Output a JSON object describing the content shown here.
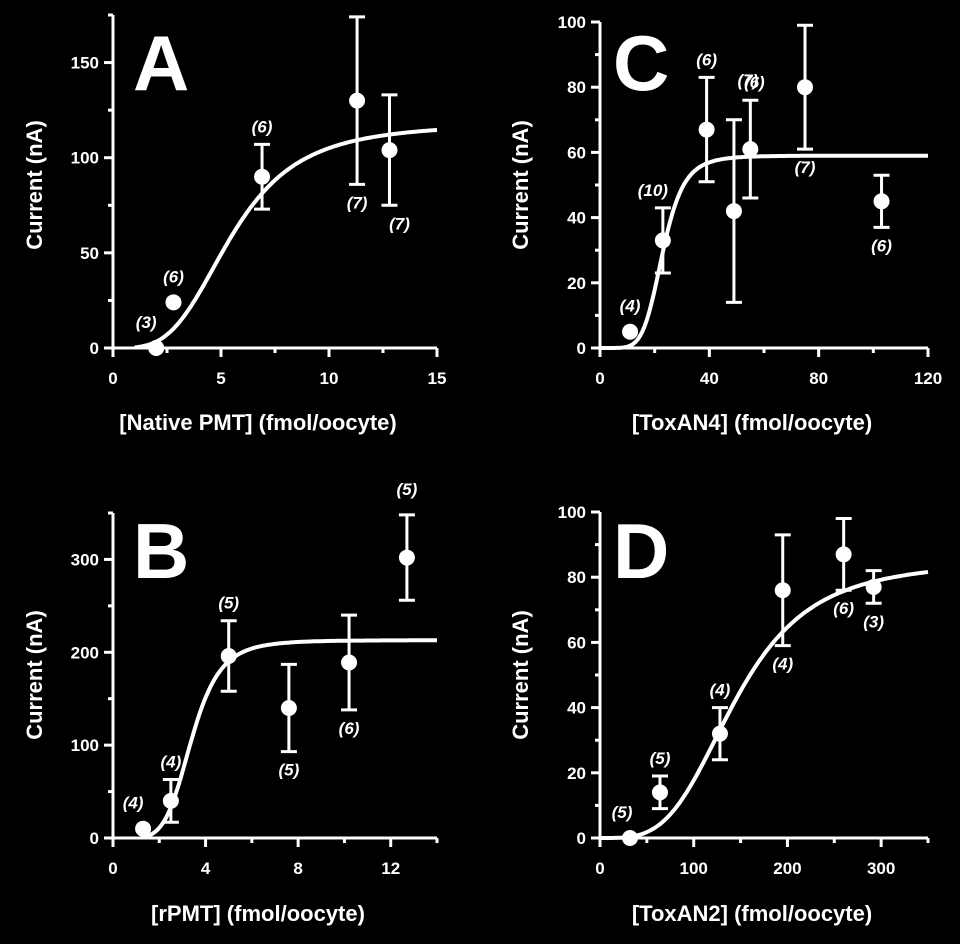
{
  "chart_data": [
    {
      "type": "scatter",
      "panel": "A",
      "xlabel": "[Native PMT] (fmol/oocyte)",
      "ylabel": "Current  (nA)",
      "xlim": [
        0,
        15
      ],
      "ylim": [
        0,
        175
      ],
      "xticks": [
        0,
        5,
        10,
        15
      ],
      "yticks": [
        0,
        50,
        100,
        150
      ],
      "points": [
        {
          "x": 2.0,
          "y": 0,
          "err": 0,
          "n": "(3)"
        },
        {
          "x": 2.8,
          "y": 24,
          "err": 0,
          "n": "(6)"
        },
        {
          "x": 6.9,
          "y": 90,
          "err": 17,
          "n": "(6)"
        },
        {
          "x": 11.3,
          "y": 130,
          "err": 44,
          "n": "(7)"
        },
        {
          "x": 12.8,
          "y": 104,
          "err": 29,
          "n": "(7)"
        }
      ],
      "fit": {
        "max": 118,
        "ec50": 5.5,
        "hill": 3.5,
        "xrange": [
          1,
          15
        ]
      }
    },
    {
      "type": "scatter",
      "panel": "B",
      "xlabel": "[rPMT] (fmol/oocyte)",
      "ylabel": "Current  (nA)",
      "xlim": [
        0,
        14
      ],
      "ylim": [
        0,
        350
      ],
      "xticks": [
        0,
        4,
        8,
        12
      ],
      "yticks": [
        0,
        100,
        200,
        300
      ],
      "points": [
        {
          "x": 1.3,
          "y": 10,
          "err": 0,
          "n": "(4)"
        },
        {
          "x": 2.5,
          "y": 40,
          "err": 23,
          "n": "(4)"
        },
        {
          "x": 5.0,
          "y": 196,
          "err": 38,
          "n": "(5)"
        },
        {
          "x": 7.6,
          "y": 140,
          "err": 47,
          "n": "(5)"
        },
        {
          "x": 10.2,
          "y": 189,
          "err": 51,
          "n": "(6)"
        },
        {
          "x": 12.7,
          "y": 302,
          "err": 46,
          "n": "(5)"
        }
      ],
      "fit": {
        "max": 213,
        "ec50": 3.4,
        "hill": 5.5,
        "xrange": [
          1.2,
          14
        ]
      }
    },
    {
      "type": "scatter",
      "panel": "C",
      "xlabel": "[ToxAN4] (fmol/oocyte)",
      "ylabel": "Current  (nA)",
      "xlim": [
        0,
        120
      ],
      "ylim": [
        0,
        100
      ],
      "xticks": [
        0,
        40,
        80,
        120
      ],
      "yticks": [
        0,
        20,
        40,
        60,
        80,
        100
      ],
      "points": [
        {
          "x": 11,
          "y": 5,
          "err": 0,
          "n": "(4)"
        },
        {
          "x": 23,
          "y": 33,
          "err": 10,
          "n": "(10)"
        },
        {
          "x": 39,
          "y": 67,
          "err": 16,
          "n": "(6)"
        },
        {
          "x": 49,
          "y": 42,
          "err": 28,
          "n": "(7)"
        },
        {
          "x": 55,
          "y": 61,
          "err": 15,
          "n": "(6)"
        },
        {
          "x": 75,
          "y": 80,
          "err": 19,
          "n": "(7)"
        },
        {
          "x": 103,
          "y": 45,
          "err": 8,
          "n": "(6)"
        }
      ],
      "fit": {
        "max": 59,
        "ec50": 23,
        "hill": 6,
        "xrange": [
          0,
          120
        ]
      }
    },
    {
      "type": "scatter",
      "panel": "D",
      "xlabel": "[ToxAN2] (fmol/oocyte)",
      "ylabel": "Current  (nA)",
      "xlim": [
        0,
        350
      ],
      "ylim": [
        0,
        100
      ],
      "xticks": [
        0,
        100,
        200,
        300
      ],
      "yticks": [
        0,
        20,
        40,
        60,
        80,
        100
      ],
      "points": [
        {
          "x": 32,
          "y": 0,
          "err": 0,
          "n": "(5)"
        },
        {
          "x": 64,
          "y": 14,
          "err": 5,
          "n": "(5)"
        },
        {
          "x": 128,
          "y": 32,
          "err": 8,
          "n": "(4)"
        },
        {
          "x": 195,
          "y": 76,
          "err": 17,
          "n": "(4)"
        },
        {
          "x": 260,
          "y": 87,
          "err": 11,
          "n": "(6)"
        },
        {
          "x": 292,
          "y": 77,
          "err": 5,
          "n": "(3)"
        }
      ],
      "fit": {
        "max": 85,
        "ec50": 145,
        "hill": 3.6,
        "xrange": [
          0,
          350
        ]
      }
    }
  ]
}
